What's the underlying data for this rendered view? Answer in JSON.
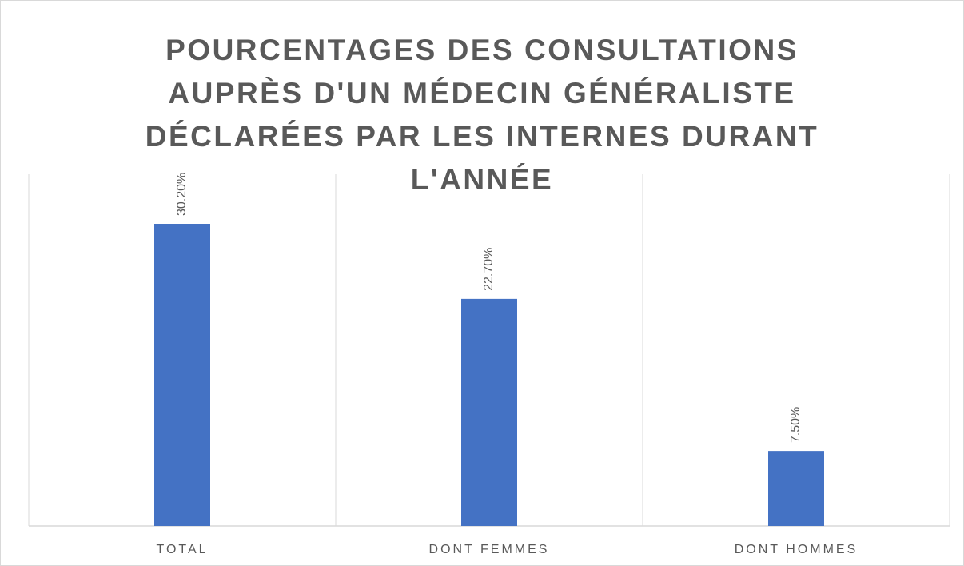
{
  "chart_data": {
    "type": "bar",
    "title": "POURCENTAGES DES CONSULTATIONS AUPRÈS D'UN MÉDECIN GÉNÉRALISTE DÉCLARÉES PAR LES INTERNES DURANT L'ANNÉE",
    "categories": [
      "TOTAL",
      "DONT FEMMES",
      "DONT HOMMES"
    ],
    "values": [
      30.2,
      22.7,
      7.5
    ],
    "value_labels": [
      "30.20%",
      "22.70%",
      "7.50%"
    ],
    "color": "#4472c4"
  }
}
